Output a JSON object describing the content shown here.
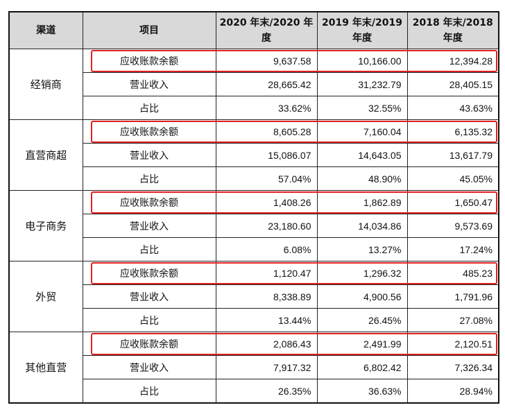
{
  "headers": [
    "渠道",
    "项目",
    "2020 年末/2020 年度",
    "2019 年末/2019 年度",
    "2018 年末/2018 年度"
  ],
  "groups": [
    {
      "channel": "经销商",
      "rows": [
        {
          "item": "应收账款余额",
          "v2020": "9,637.58",
          "v2019": "10,166.00",
          "v2018": "12,394.28"
        },
        {
          "item": "营业收入",
          "v2020": "28,665.42",
          "v2019": "31,232.79",
          "v2018": "28,405.15"
        },
        {
          "item": "占比",
          "v2020": "33.62%",
          "v2019": "32.55%",
          "v2018": "43.63%"
        }
      ]
    },
    {
      "channel": "直营商超",
      "rows": [
        {
          "item": "应收账款余额",
          "v2020": "8,605.28",
          "v2019": "7,160.04",
          "v2018": "6,135.32"
        },
        {
          "item": "营业收入",
          "v2020": "15,086.07",
          "v2019": "14,643.05",
          "v2018": "13,617.79"
        },
        {
          "item": "占比",
          "v2020": "57.04%",
          "v2019": "48.90%",
          "v2018": "45.05%"
        }
      ]
    },
    {
      "channel": "电子商务",
      "rows": [
        {
          "item": "应收账款余额",
          "v2020": "1,408.26",
          "v2019": "1,862.89",
          "v2018": "1,650.47"
        },
        {
          "item": "营业收入",
          "v2020": "23,180.60",
          "v2019": "14,034.86",
          "v2018": "9,573.69"
        },
        {
          "item": "占比",
          "v2020": "6.08%",
          "v2019": "13.27%",
          "v2018": "17.24%"
        }
      ]
    },
    {
      "channel": "外贸",
      "rows": [
        {
          "item": "应收账款余额",
          "v2020": "1,120.47",
          "v2019": "1,296.32",
          "v2018": "485.23"
        },
        {
          "item": "营业收入",
          "v2020": "8,338.89",
          "v2019": "4,900.56",
          "v2018": "1,791.96"
        },
        {
          "item": "占比",
          "v2020": "13.44%",
          "v2019": "26.45%",
          "v2018": "27.08%"
        }
      ]
    },
    {
      "channel": "其他直营",
      "rows": [
        {
          "item": "应收账款余额",
          "v2020": "2,086.43",
          "v2019": "2,491.99",
          "v2018": "2,120.51"
        },
        {
          "item": "营业收入",
          "v2020": "7,917.32",
          "v2019": "6,802.42",
          "v2018": "7,326.34"
        },
        {
          "item": "占比",
          "v2020": "26.35%",
          "v2019": "36.63%",
          "v2018": "28.94%"
        }
      ]
    }
  ],
  "colors": {
    "header_bg": "#d9d9d9",
    "highlight": "#e02020",
    "border": "#222222"
  }
}
